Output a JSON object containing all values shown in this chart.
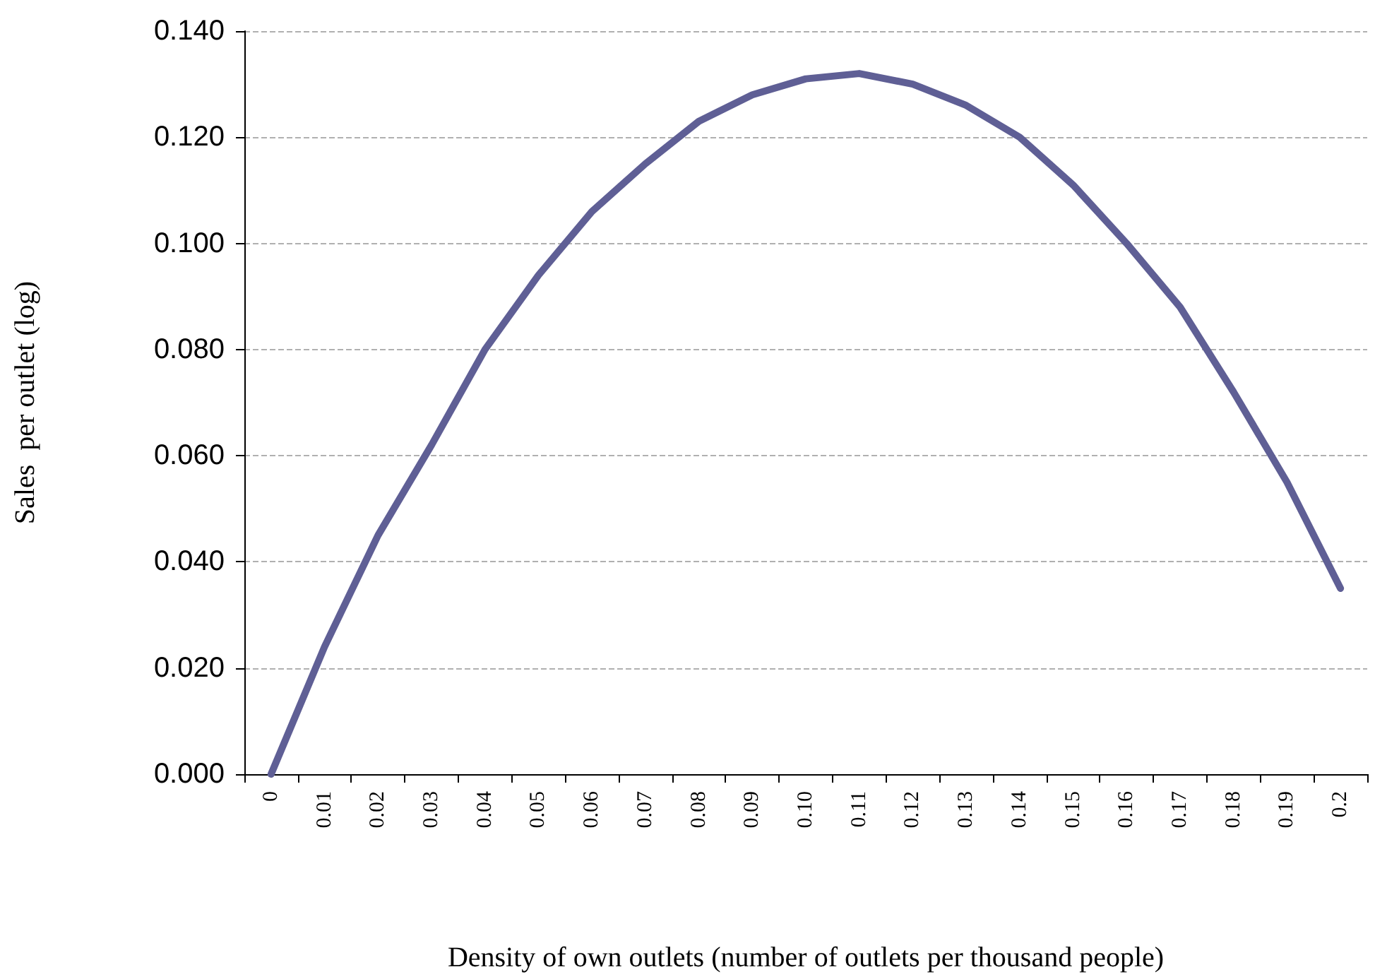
{
  "chart_data": {
    "type": "line",
    "xlabel": "Density of own outlets (number of outlets per thousand people)",
    "ylabel": "Sales  per outlet (log)",
    "categories": [
      "0",
      "0.01",
      "0.02",
      "0.03",
      "0.04",
      "0.05",
      "0.06",
      "0.07",
      "0.08",
      "0.09",
      "0.10",
      "0.11",
      "0.12",
      "0.13",
      "0.14",
      "0.15",
      "0.16",
      "0.17",
      "0.18",
      "0.19",
      "0.2"
    ],
    "series": [
      {
        "color": "#5f5f95",
        "values": [
          0.0,
          0.024,
          0.045,
          0.062,
          0.08,
          0.094,
          0.106,
          0.115,
          0.123,
          0.128,
          0.131,
          0.132,
          0.13,
          0.126,
          0.12,
          0.111,
          0.1,
          0.088,
          0.072,
          0.055,
          0.035
        ]
      }
    ],
    "ylim": [
      0,
      0.14
    ],
    "yticks": [
      {
        "value": 0,
        "label": "0.000"
      },
      {
        "value": 0.02,
        "label": "0.020"
      },
      {
        "value": 0.04,
        "label": "0.040"
      },
      {
        "value": 0.06,
        "label": "0.060"
      },
      {
        "value": 0.08,
        "label": "0.080"
      },
      {
        "value": 0.1,
        "label": "0.100"
      },
      {
        "value": 0.12,
        "label": "0.120"
      },
      {
        "value": 0.14,
        "label": "0.140"
      }
    ],
    "grid": "y",
    "marker": "none",
    "line_style": "solid"
  }
}
